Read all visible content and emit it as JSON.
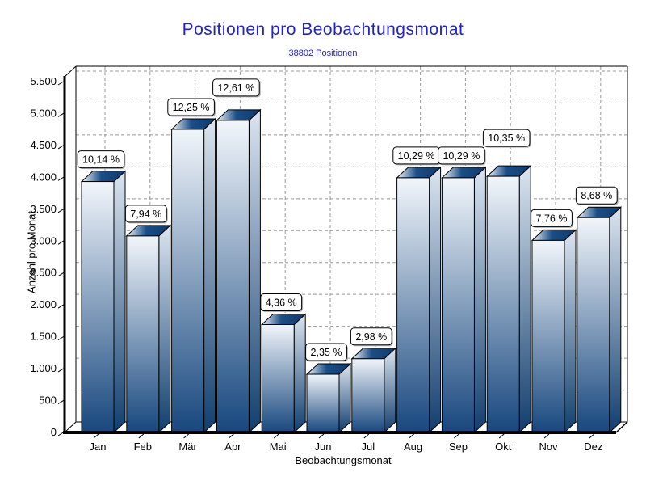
{
  "chart_data": {
    "type": "bar",
    "style": "3d-gradient-bars",
    "title": "Positionen pro Beobachtungsmonat",
    "subtitle": "38802 Positionen",
    "xlabel": "Beobachtungsmonat",
    "ylabel": "Anzahl pro Monat",
    "categories": [
      "Jan",
      "Feb",
      "Mär",
      "Apr",
      "Mai",
      "Jun",
      "Jul",
      "Aug",
      "Sep",
      "Okt",
      "Nov",
      "Dez"
    ],
    "values": [
      3934,
      3081,
      4753,
      4893,
      1692,
      912,
      1156,
      3993,
      3993,
      4016,
      3011,
      3368
    ],
    "bar_labels": [
      "10,14 %",
      "7,94 %",
      "12,25 %",
      "12,61 %",
      "4,36 %",
      "2,35 %",
      "2,98 %",
      "10,29 %",
      "10,29 %",
      "10,35 %",
      "7,76 %",
      "8,68 %"
    ],
    "total_positions": 38802,
    "ylim": [
      0,
      5700
    ],
    "ytick_step": 500,
    "ytick_labels": [
      "0",
      "500",
      "1.000",
      "1.500",
      "2.000",
      "2.500",
      "3.000",
      "3.500",
      "4.000",
      "4.500",
      "5.000",
      "5.500"
    ],
    "grid": "dashed horizontal and vertical",
    "legend": "none",
    "label_raise": [
      0,
      0,
      0,
      13,
      0,
      0,
      0,
      0,
      0,
      20,
      0,
      0
    ]
  },
  "colors": {
    "title_blue": "#2222CC",
    "bar_dark": "#17477E",
    "bar_mid": "#1A4E86",
    "bar_front_light": "#F2F6FB",
    "bar_side_light": "#DCE5F0",
    "bar_side_dark": "#113E6E",
    "cap_dark": "#0F3A6B",
    "outline": "#000000",
    "grid_gray": "#999999",
    "label_box_bg": "#FFFFFF",
    "label_box_shadow": "#B0B0B0",
    "text_black": "#000000"
  }
}
